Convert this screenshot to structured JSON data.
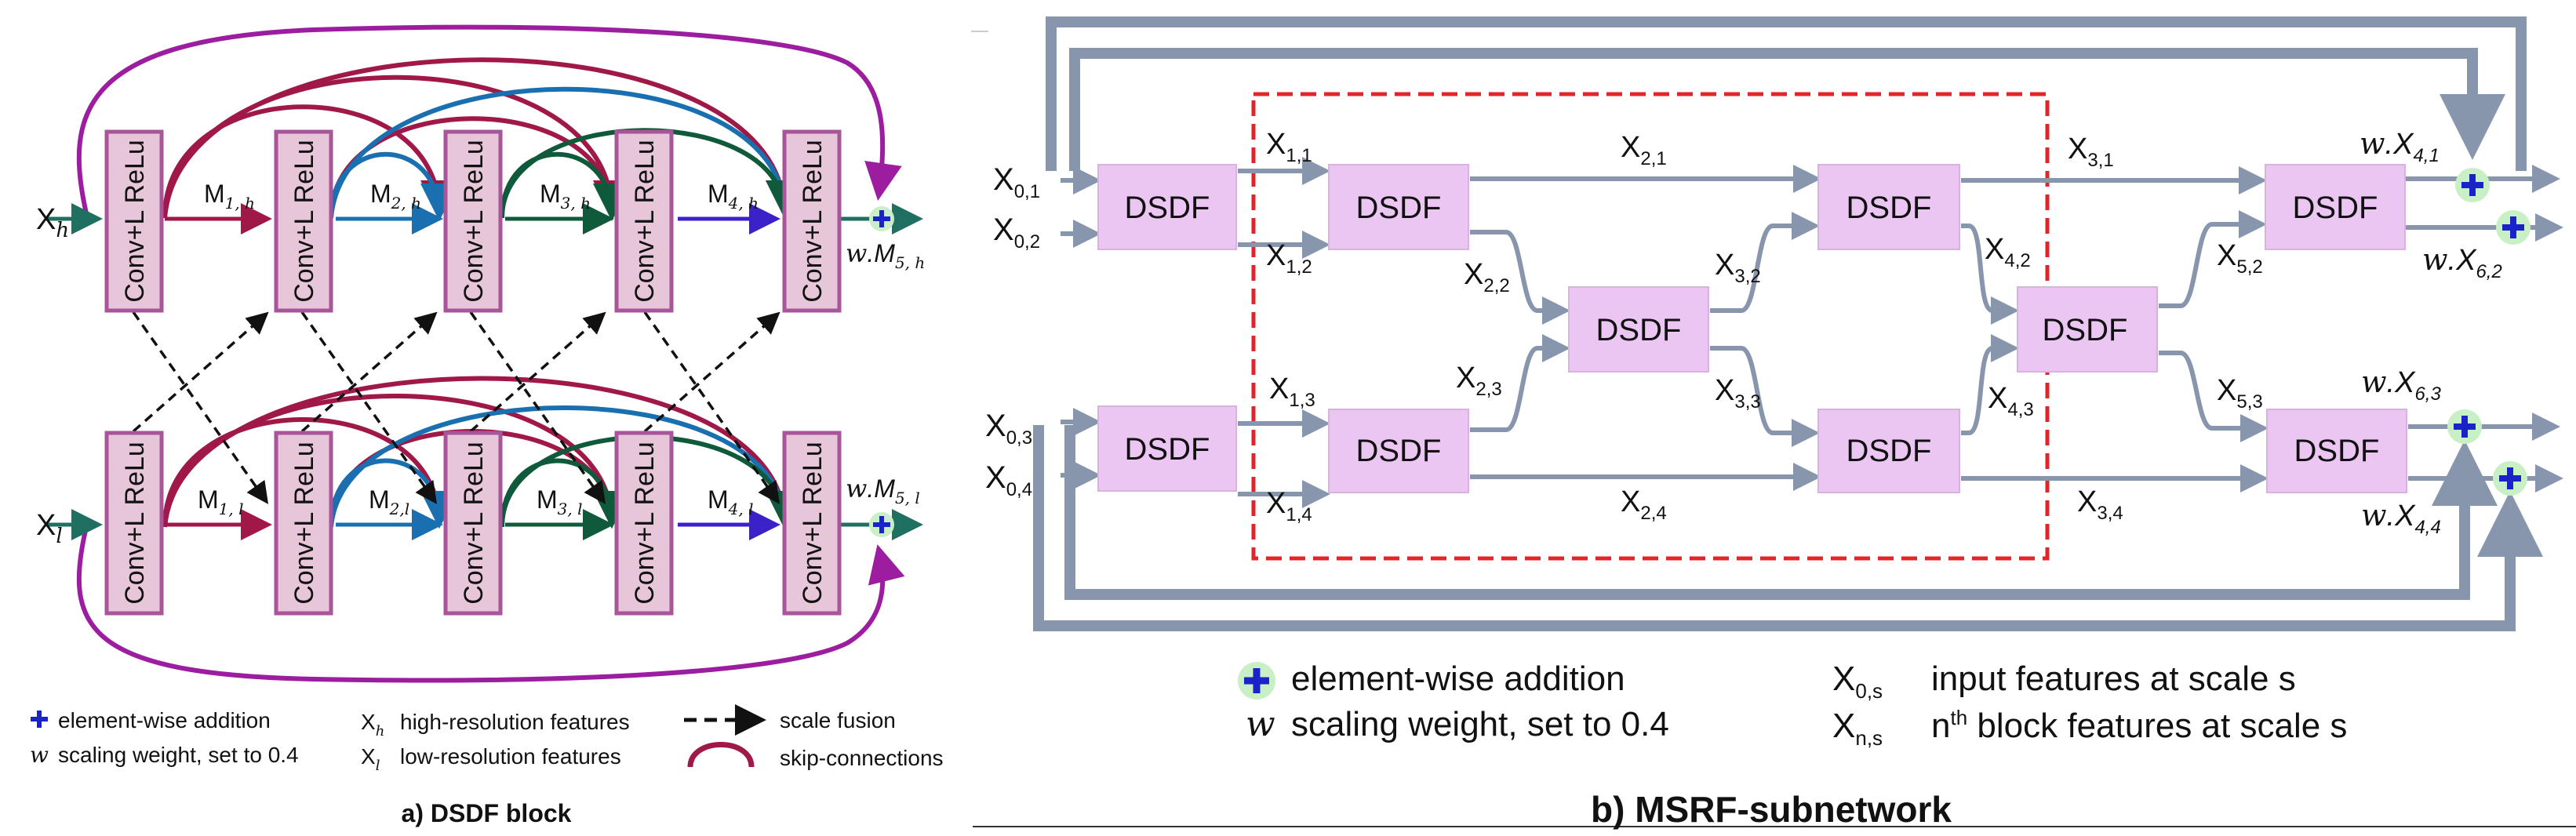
{
  "panel_a": {
    "caption": "a) DSDF block",
    "blocks": [
      "Conv+L ReLu",
      "Conv+L ReLu",
      "Conv+L ReLu",
      "Conv+L ReLu",
      "Conv+L ReLu"
    ],
    "input_h": "X",
    "input_h_sub": "h",
    "input_l": "X",
    "input_l_sub": "l",
    "edges_h": [
      {
        "name": "M",
        "sub": "1, h"
      },
      {
        "name": "M",
        "sub": "2, h"
      },
      {
        "name": "M",
        "sub": "3, h"
      },
      {
        "name": "M",
        "sub": "4, h"
      }
    ],
    "edges_l": [
      {
        "name": "M",
        "sub": "1, l"
      },
      {
        "name": "M",
        "sub": "2,l"
      },
      {
        "name": "M",
        "sub": "3, l"
      },
      {
        "name": "M",
        "sub": "4, l"
      }
    ],
    "output_h": {
      "w": "w",
      "name": ".M",
      "sub": "5, h"
    },
    "output_l": {
      "w": "w",
      "name": ".M",
      "sub": "5, l"
    },
    "legend": {
      "add": "element-wise addition",
      "w_symbol": "w",
      "w_text": "scaling weight, set to 0.4",
      "xh": "X",
      "xh_sub": "h",
      "xh_text": "high-resolution features",
      "xl": "X",
      "xl_sub": "l",
      "xl_text": "low-resolution features",
      "fusion": "scale fusion",
      "skip": "skip-connections"
    }
  },
  "panel_b": {
    "caption": "b) MSRF-subnetwork",
    "block_label": "DSDF",
    "inputs": [
      {
        "name": "X",
        "sub": "0,1"
      },
      {
        "name": "X",
        "sub": "0,2"
      },
      {
        "name": "X",
        "sub": "0,3"
      },
      {
        "name": "X",
        "sub": "0,4"
      }
    ],
    "edges": [
      {
        "name": "X",
        "sub": "1,1"
      },
      {
        "name": "X",
        "sub": "1,2"
      },
      {
        "name": "X",
        "sub": "1,3"
      },
      {
        "name": "X",
        "sub": "1,4"
      },
      {
        "name": "X",
        "sub": "2,1"
      },
      {
        "name": "X",
        "sub": "2,2"
      },
      {
        "name": "X",
        "sub": "2,3"
      },
      {
        "name": "X",
        "sub": "2,4"
      },
      {
        "name": "X",
        "sub": "3,1"
      },
      {
        "name": "X",
        "sub": "3,2"
      },
      {
        "name": "X",
        "sub": "3,3"
      },
      {
        "name": "X",
        "sub": "3,4"
      },
      {
        "name": "X",
        "sub": "4,2"
      },
      {
        "name": "X",
        "sub": "4,3"
      },
      {
        "name": "X",
        "sub": "5,2"
      },
      {
        "name": "X",
        "sub": "5,3"
      }
    ],
    "outputs": [
      {
        "w": "w",
        "name": ".X",
        "sub": "4,1"
      },
      {
        "w": "w",
        "name": ".X",
        "sub": "6,2"
      },
      {
        "w": "w",
        "name": ".X",
        "sub": "6,3"
      },
      {
        "w": "w",
        "name": ".X",
        "sub": "4,4"
      }
    ],
    "legend": {
      "add": "element-wise addition",
      "w_symbol": "w",
      "w_text": "scaling weight, set to 0.4",
      "x0": "X",
      "x0_sub": "0,s",
      "x0_text": "input features at scale s",
      "xn": "X",
      "xn_sub": "n,s",
      "xn_text_a": "n",
      "xn_text_sup": "th",
      "xn_text_b": " block features at scale s"
    }
  }
}
